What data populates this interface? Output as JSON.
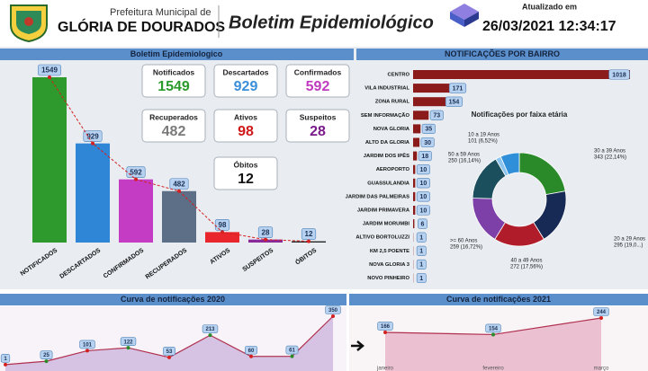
{
  "header": {
    "municipality_prefix": "Prefeitura Municipal de",
    "municipality": "GLÓRIA DE DOURADOS",
    "title": "Boletim Epidemiológico",
    "updated_label": "Atualizado em",
    "updated_at": "26/03/2021 12:34:17"
  },
  "kpis": [
    {
      "label": "Notificados",
      "value": 1549,
      "color": "#2a9a2a"
    },
    {
      "label": "Descartados",
      "value": 929,
      "color": "#3a8fd8"
    },
    {
      "label": "Confirmados",
      "value": 592,
      "color": "#c03ac0"
    },
    {
      "label": "Recuperados",
      "value": 482,
      "color": "#7a7a7a"
    },
    {
      "label": "Ativos",
      "value": 98,
      "color": "#d01818"
    },
    {
      "label": "Suspeitos",
      "value": 28,
      "color": "#7a1a8a"
    },
    {
      "label": "Óbitos",
      "value": 12,
      "color": "#111111"
    }
  ],
  "chart_data": [
    {
      "type": "bar",
      "title": "Boletim Epidemiologico",
      "categories": [
        "NOTIFICADOS",
        "DESCARTADOS",
        "CONFIRMADOS",
        "RECUPERADOS",
        "ATIVOS",
        "SUSPEITOS",
        "ÓBITOS"
      ],
      "values": [
        1549,
        929,
        592,
        482,
        98,
        28,
        12
      ],
      "colors": [
        "#2e9a2e",
        "#2f86d6",
        "#c33cc3",
        "#5d6f86",
        "#e8262b",
        "#8a2a9a",
        "#2a2a2a"
      ],
      "trend_line": true,
      "trend_color": "#d42020"
    },
    {
      "type": "hbar",
      "title": "NOTIFICAÇÕES POR BAIRRO",
      "categories": [
        "CENTRO",
        "VILA INDUSTRIAL",
        "ZONA RURAL",
        "SEM INFORMAÇÃO",
        "NOVA GLORIA",
        "ALTO DA GLORIA",
        "JARDIM DOS IPÊS",
        "AEROPORTO",
        "GUASSULANDIA",
        "JARDIM DAS PALMEIRAS",
        "JARDIM PRIMAVERA",
        "JARDIM MORUMBI",
        "ALTIVO BORTOLUZZI",
        "KM 2,5 POENTE",
        "NOVA GLORIA 3",
        "NOVO PINHEIRO"
      ],
      "values": [
        1018,
        171,
        154,
        73,
        35,
        30,
        18,
        10,
        10,
        10,
        10,
        6,
        1,
        1,
        1,
        1
      ],
      "color": "#8b1a1a"
    },
    {
      "type": "pie",
      "title": "Notificações por faixa etária",
      "donut": true,
      "categories": [
        "30 a 39 Anos",
        "20 a 29 Anos",
        "40 a 49 Anos",
        ">= 60 Anos",
        "50 a 59 Anos",
        null,
        "10 a 19 Anos"
      ],
      "values": [
        343,
        295,
        272,
        259,
        250,
        29,
        101
      ],
      "value_labels": [
        "343 (22,14%)",
        "295 (19,0...)",
        "272 (17,56%)",
        "259 (16,72%)",
        "250 (16,14%)",
        null,
        "101 (6,52%)"
      ],
      "colors": [
        "#2a8a2a",
        "#172a55",
        "#b01c2a",
        "#7d3fa8",
        "#1c4f5e",
        "#8cc4ee",
        "#2f8fd8"
      ]
    },
    {
      "type": "line",
      "title": "Curva de notificações 2020",
      "categories": [
        null,
        null,
        null,
        null,
        null,
        null,
        null,
        null,
        null
      ],
      "values": [
        1,
        25,
        101,
        122,
        53,
        213,
        60,
        61,
        350
      ],
      "color": "#b03050",
      "area_color": "#cdb6dd"
    },
    {
      "type": "line",
      "title": "Curva de notificações 2021",
      "categories": [
        "janeiro",
        "fevereiro",
        "março"
      ],
      "values": [
        166,
        154,
        244
      ],
      "color": "#b03050",
      "area_color": "#e7b4c8"
    }
  ]
}
